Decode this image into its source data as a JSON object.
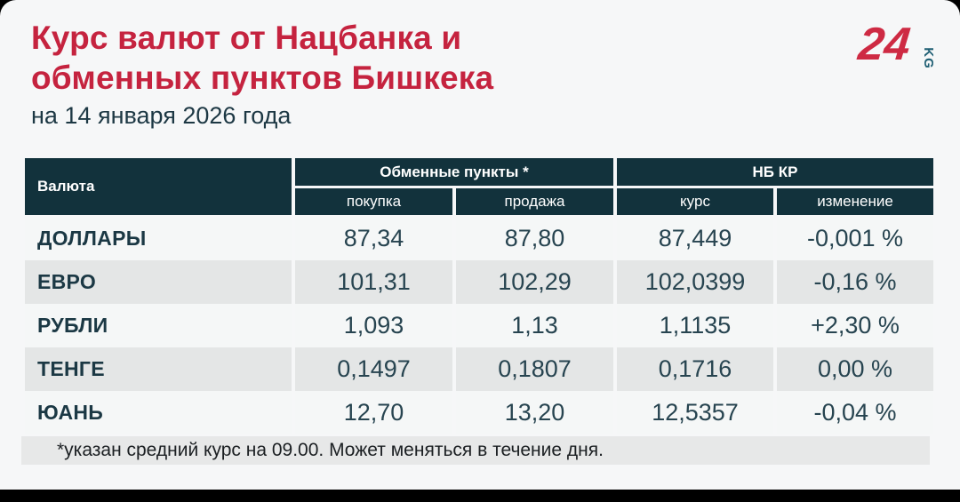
{
  "header": {
    "title_line1": "Курс валют от Нацбанка и",
    "title_line2": "обменных пунктов Бишкека",
    "subtitle": "на 14 января 2026 года",
    "logo": {
      "number": "24",
      "suffix": "KG"
    }
  },
  "table": {
    "currency_col_header": "Валюта",
    "groups": [
      {
        "label": "Обменные пункты *",
        "sub": [
          "покупка",
          "продажа"
        ]
      },
      {
        "label": "НБ КР",
        "sub": [
          "курс",
          "изменение"
        ]
      }
    ],
    "rows": [
      {
        "currency": "ДОЛЛАРЫ",
        "buy": "87,34",
        "sell": "87,80",
        "rate": "87,449",
        "change": "-0,001 %"
      },
      {
        "currency": "ЕВРО",
        "buy": "101,31",
        "sell": "102,29",
        "rate": "102,0399",
        "change": "-0,16 %"
      },
      {
        "currency": "РУБЛИ",
        "buy": "1,093",
        "sell": "1,13",
        "rate": "1,1135",
        "change": "+2,30 %"
      },
      {
        "currency": "ТЕНГЕ",
        "buy": "0,1497",
        "sell": "0,1807",
        "rate": "0,1716",
        "change": "0,00 %"
      },
      {
        "currency": "ЮАНЬ",
        "buy": "12,70",
        "sell": "13,20",
        "rate": "12,5357",
        "change": "-0,04 %"
      }
    ],
    "footnote": "*указан средний курс на 09.00. Может меняться в течение дня."
  },
  "colors": {
    "title_red": "#c5233f",
    "logo_red": "#ce2a43",
    "logo_kg_teal": "#1f5f74",
    "header_teal": "#12323c",
    "text_dark_teal": "#274450",
    "row_light": "#f5f7f7",
    "row_gray": "#e4e6e6",
    "footnote_bg": "#e7e8e8",
    "card_bg": "#f6f7f8",
    "outer_bg": "#000000"
  },
  "chart_data": {
    "type": "table",
    "title": "Курс валют от Нацбанка и обменных пунктов Бишкека",
    "subtitle": "на 14 января 2026 года",
    "columns": [
      "Валюта",
      "Обменные пункты * — покупка",
      "Обменные пункты * — продажа",
      "НБ КР — курс",
      "НБ КР — изменение"
    ],
    "rows": [
      [
        "ДОЛЛАРЫ",
        "87,34",
        "87,80",
        "87,449",
        "-0,001 %"
      ],
      [
        "ЕВРО",
        "101,31",
        "102,29",
        "102,0399",
        "-0,16 %"
      ],
      [
        "РУБЛИ",
        "1,093",
        "1,13",
        "1,1135",
        "+2,30 %"
      ],
      [
        "ТЕНГЕ",
        "0,1497",
        "0,1807",
        "0,1716",
        "0,00 %"
      ],
      [
        "ЮАНЬ",
        "12,70",
        "13,20",
        "12,5357",
        "-0,04 %"
      ]
    ],
    "footnote": "*указан средний курс на 09.00. Может меняться в течение дня."
  }
}
